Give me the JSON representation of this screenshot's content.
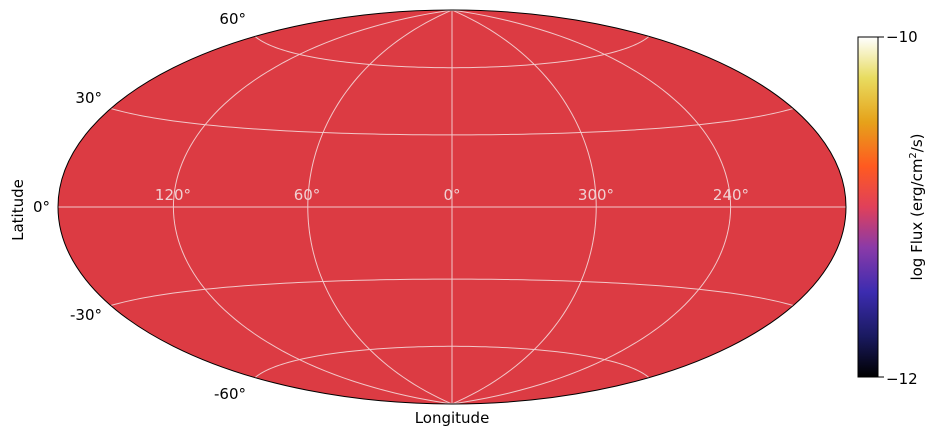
{
  "chart_data": {
    "type": "heatmap",
    "projection": "aitoff-hammer (all-sky ellipse)",
    "title": "",
    "xlabel": "Longitude",
    "ylabel": "Latitude",
    "lon_tick_labels": [
      "120°",
      "60°",
      "0°",
      "300°",
      "240°"
    ],
    "lat_tick_labels": [
      "60°",
      "30°",
      "0°",
      "-30°",
      "-60°"
    ],
    "lon_meridians_deg": [
      -120,
      -60,
      0,
      60,
      120
    ],
    "lat_parallels_deg": [
      -60,
      -30,
      0,
      30,
      60
    ],
    "grid": true,
    "fill_value_log_flux": -11.2,
    "fill_color": "#dc3b43",
    "colorbar": {
      "label": "log Flux (erg/cm²/s)",
      "label_main": "log Flux (erg/cm",
      "label_sup": "2",
      "label_tail": "/s)",
      "min": -12,
      "max": -10,
      "tick_labels": [
        "−10",
        "−12"
      ],
      "colormap": "CMRmap",
      "placement": "right"
    },
    "colors": {
      "grid": "#f2c7c9",
      "outline": "#000000",
      "lon_labels": "#f0d0d2"
    }
  }
}
